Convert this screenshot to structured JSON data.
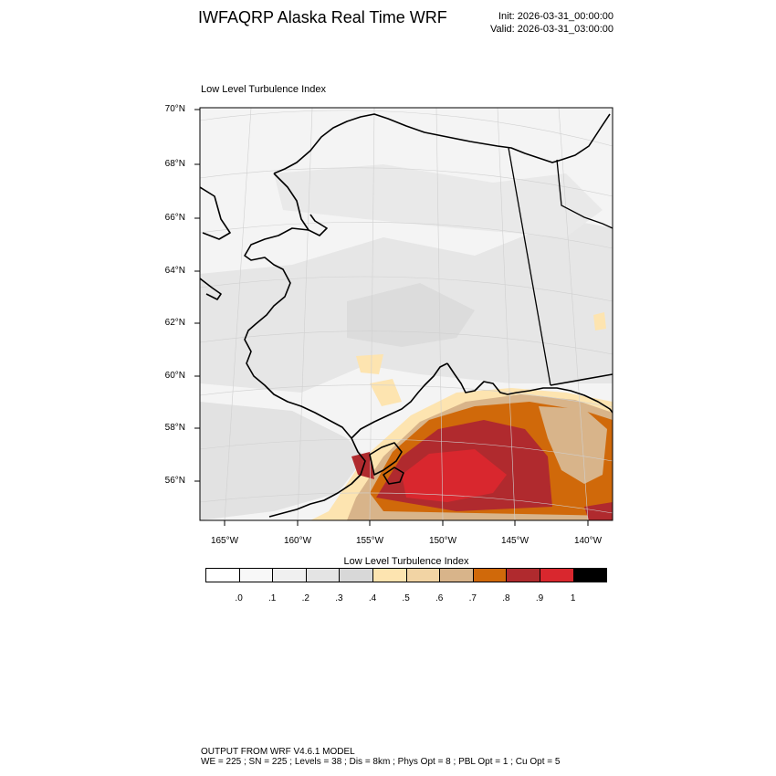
{
  "header": {
    "title": "IWFAQRP Alaska Real Time WRF",
    "init": "Init: 2026-03-31_00:00:00",
    "valid": "Valid: 2026-03-31_03:00:00"
  },
  "map": {
    "title": "Low Level Turbulence Index",
    "lat_labels": [
      "70°N",
      "68°N",
      "66°N",
      "64°N",
      "62°N",
      "60°N",
      "58°N",
      "56°N"
    ],
    "lon_labels": [
      "165°W",
      "160°W",
      "155°W",
      "150°W",
      "145°W",
      "140°W"
    ],
    "max_region": "Gulf of Alaska, peak values 0.9–1.0"
  },
  "colorbar": {
    "title": "Low Level Turbulence Index",
    "colors": [
      "#ffffff",
      "#f8f8f8",
      "#f0f0f0",
      "#e4e4e4",
      "#d8d8d8",
      "#fde4b0",
      "#f2d4a4",
      "#d8b48a",
      "#d0690a",
      "#b02a2e",
      "#d9272e",
      "#000000"
    ],
    "labels": [
      ".0",
      ".1",
      ".2",
      ".3",
      ".4",
      ".5",
      ".6",
      ".7",
      ".8",
      ".9",
      "1"
    ]
  },
  "footer": {
    "line1": "OUTPUT FROM WRF V4.6.1 MODEL",
    "line2": "WE = 225 ; SN = 225 ; Levels = 38 ; Dis = 8km ; Phys Opt = 8 ; PBL Opt = 1 ; Cu Opt = 5"
  }
}
